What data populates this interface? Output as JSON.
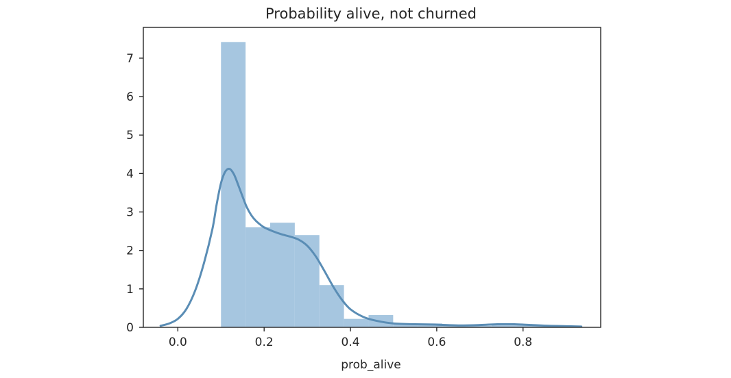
{
  "chart_data": {
    "type": "histogram",
    "title": "Probability alive, not churned",
    "xlabel": "prob_alive",
    "ylabel": "",
    "xlim": [
      -0.08,
      0.98
    ],
    "ylim": [
      0,
      7.8
    ],
    "xticks": [
      0.0,
      0.2,
      0.4,
      0.6,
      0.8
    ],
    "xtick_labels": [
      "0.0",
      "0.2",
      "0.4",
      "0.6",
      "0.8"
    ],
    "yticks": [
      0,
      1,
      2,
      3,
      4,
      5,
      6,
      7
    ],
    "ytick_labels": [
      "0",
      "1",
      "2",
      "3",
      "4",
      "5",
      "6",
      "7"
    ],
    "grid": false,
    "legend": "none",
    "colors": {
      "bar_fill": "#a6c6e0",
      "kde_line": "#5a8db5",
      "axes": "#262626"
    },
    "bins": [
      {
        "x0": 0.1,
        "x1": 0.157,
        "density": 7.42
      },
      {
        "x0": 0.157,
        "x1": 0.214,
        "density": 2.6
      },
      {
        "x0": 0.214,
        "x1": 0.271,
        "density": 2.72
      },
      {
        "x0": 0.271,
        "x1": 0.328,
        "density": 2.4
      },
      {
        "x0": 0.328,
        "x1": 0.385,
        "density": 1.1
      },
      {
        "x0": 0.385,
        "x1": 0.442,
        "density": 0.22
      },
      {
        "x0": 0.442,
        "x1": 0.499,
        "density": 0.32
      },
      {
        "x0": 0.499,
        "x1": 0.556,
        "density": 0.1
      },
      {
        "x0": 0.556,
        "x1": 0.613,
        "density": 0.1
      },
      {
        "x0": 0.613,
        "x1": 0.67,
        "density": 0.06
      },
      {
        "x0": 0.67,
        "x1": 0.727,
        "density": 0.04
      },
      {
        "x0": 0.727,
        "x1": 0.784,
        "density": 0.09
      },
      {
        "x0": 0.784,
        "x1": 0.841,
        "density": 0.06
      },
      {
        "x0": 0.841,
        "x1": 0.898,
        "density": 0.04
      },
      {
        "x0": 0.898,
        "x1": 0.935,
        "density": 0.04
      }
    ],
    "kde": {
      "x": [
        -0.04,
        -0.02,
        0.0,
        0.02,
        0.04,
        0.06,
        0.08,
        0.09,
        0.1,
        0.11,
        0.12,
        0.13,
        0.14,
        0.15,
        0.16,
        0.17,
        0.18,
        0.19,
        0.2,
        0.22,
        0.24,
        0.26,
        0.28,
        0.3,
        0.32,
        0.34,
        0.36,
        0.38,
        0.4,
        0.43,
        0.46,
        0.5,
        0.55,
        0.6,
        0.65,
        0.7,
        0.74,
        0.78,
        0.82,
        0.86,
        0.9,
        0.935
      ],
      "y": [
        0.04,
        0.1,
        0.22,
        0.48,
        0.95,
        1.65,
        2.55,
        3.2,
        3.75,
        4.05,
        4.12,
        3.98,
        3.7,
        3.4,
        3.12,
        2.92,
        2.78,
        2.68,
        2.6,
        2.5,
        2.42,
        2.36,
        2.28,
        2.12,
        1.84,
        1.46,
        1.06,
        0.72,
        0.47,
        0.27,
        0.17,
        0.1,
        0.08,
        0.07,
        0.05,
        0.06,
        0.08,
        0.08,
        0.06,
        0.04,
        0.03,
        0.02
      ]
    }
  }
}
